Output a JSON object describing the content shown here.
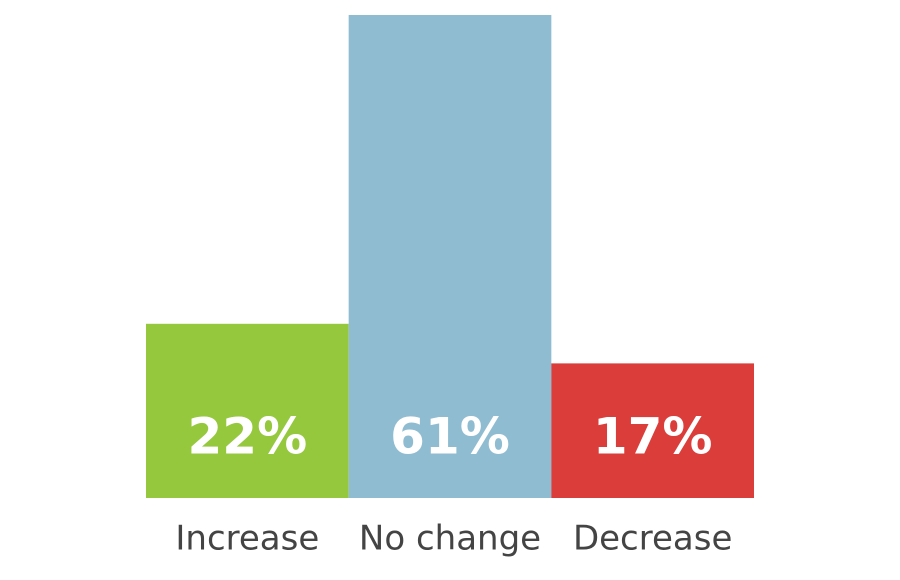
{
  "chart_data": {
    "type": "bar",
    "categories": [
      "Increase",
      "No change",
      "Decrease"
    ],
    "values": [
      22,
      61,
      17
    ],
    "value_labels": [
      "22%",
      "61%",
      "17%"
    ],
    "colors": [
      "#95c83d",
      "#8fbcd1",
      "#db3d3a"
    ]
  }
}
